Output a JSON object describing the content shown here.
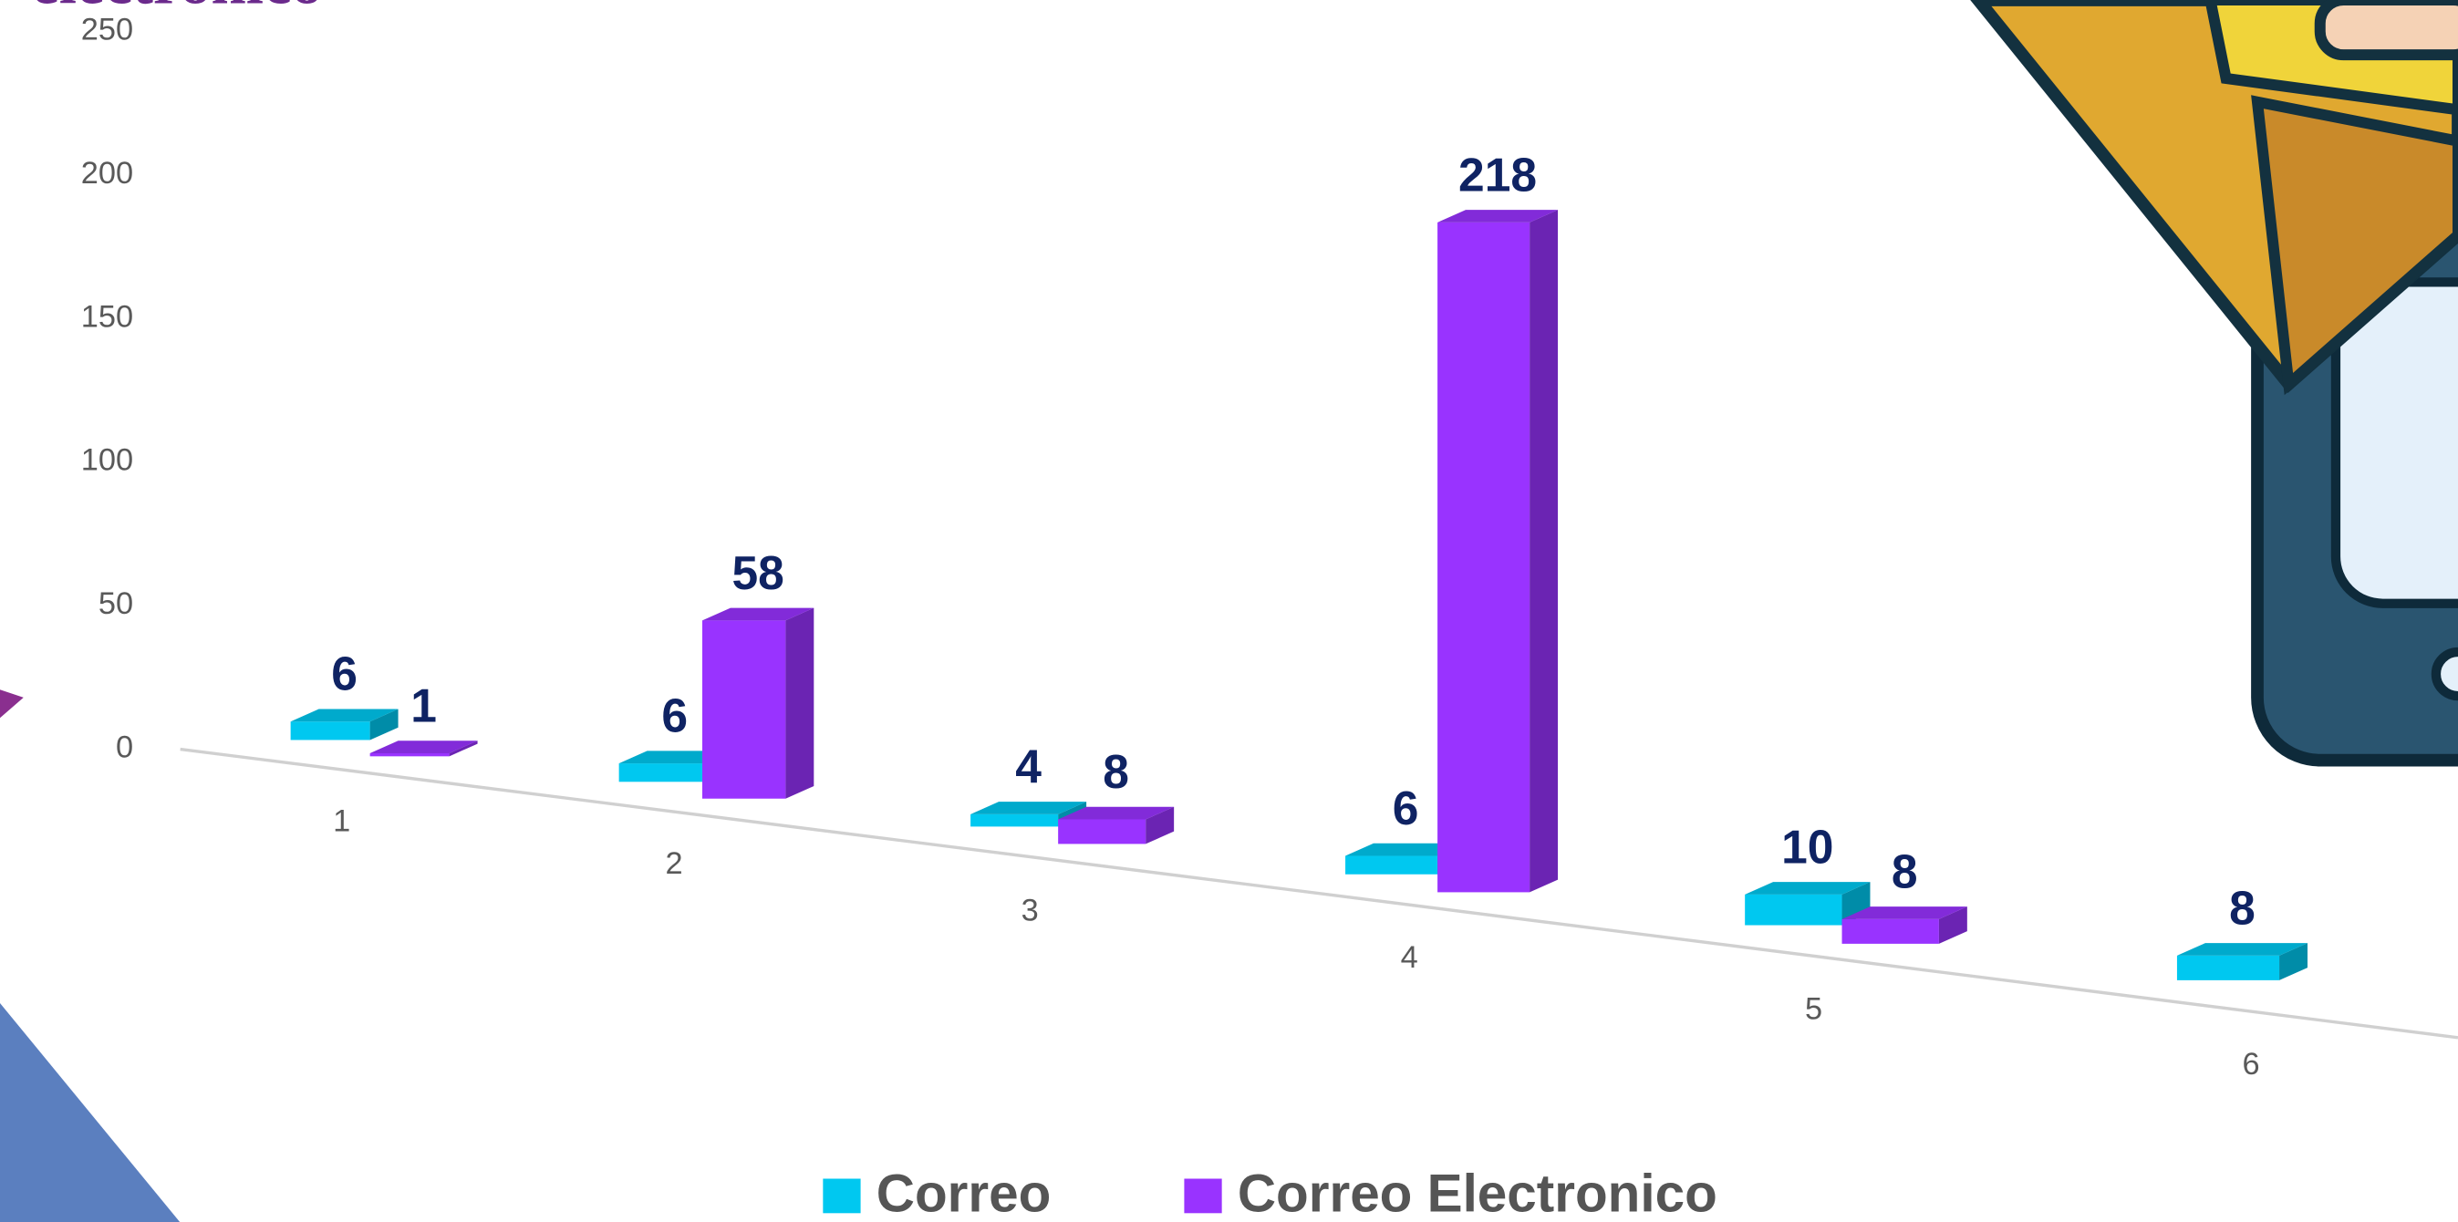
{
  "chart_data": {
    "type": "bar3d",
    "title": "electronico",
    "categories": [
      "1",
      "2",
      "3",
      "4",
      "5",
      "6"
    ],
    "series": [
      {
        "name": "Correo",
        "color": "#00c8f0",
        "values": [
          6,
          6,
          4,
          6,
          10,
          8
        ]
      },
      {
        "name": "Correo Electronico",
        "color": "#9933ff",
        "values": [
          1,
          58,
          8,
          218,
          8,
          null
        ]
      }
    ],
    "ylim": [
      0,
      250
    ],
    "yticks": [
      0,
      50,
      100,
      150,
      200,
      250
    ]
  }
}
